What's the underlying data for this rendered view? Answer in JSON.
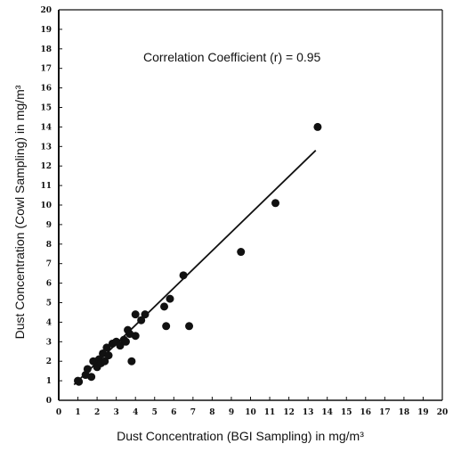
{
  "chart_data": {
    "type": "scatter",
    "title": "",
    "xlabel": "Dust Concentration (BGI Sampling) in mg/m³",
    "ylabel": "Dust Concentration (Cowl Sampling) in mg/m³",
    "annotation": "Correlation Coefficient (r) = 0.95",
    "xlim": [
      0,
      20
    ],
    "ylim": [
      0,
      20
    ],
    "x_ticks": [
      "0",
      "1",
      "2",
      "3",
      "4",
      "5",
      "6",
      "7",
      "8",
      "9",
      "10",
      "11",
      "12",
      "13",
      "14",
      "15",
      "16",
      "17",
      "18",
      "19",
      "20"
    ],
    "y_ticks": [
      "0",
      "1",
      "2",
      "3",
      "4",
      "5",
      "6",
      "7",
      "8",
      "9",
      "10",
      "11",
      "12",
      "13",
      "14",
      "15",
      "16",
      "17",
      "18",
      "19",
      "20"
    ],
    "grid": false,
    "series": [
      {
        "points": [
          [
            1.0,
            1.0
          ],
          [
            1.05,
            0.95
          ],
          [
            1.4,
            1.3
          ],
          [
            1.5,
            1.6
          ],
          [
            1.7,
            1.2
          ],
          [
            1.8,
            2.0
          ],
          [
            2.0,
            1.7
          ],
          [
            2.1,
            2.1
          ],
          [
            2.2,
            1.9
          ],
          [
            2.3,
            2.4
          ],
          [
            2.4,
            2.0
          ],
          [
            2.5,
            2.7
          ],
          [
            2.6,
            2.3
          ],
          [
            2.8,
            2.9
          ],
          [
            3.0,
            3.0
          ],
          [
            3.2,
            2.8
          ],
          [
            3.4,
            3.1
          ],
          [
            3.5,
            3.0
          ],
          [
            3.6,
            3.6
          ],
          [
            3.7,
            3.4
          ],
          [
            3.8,
            2.0
          ],
          [
            4.0,
            3.3
          ],
          [
            4.0,
            4.4
          ],
          [
            4.3,
            4.1
          ],
          [
            4.5,
            4.4
          ],
          [
            5.5,
            4.8
          ],
          [
            5.6,
            3.8
          ],
          [
            5.8,
            5.2
          ],
          [
            6.5,
            6.4
          ],
          [
            6.8,
            3.8
          ],
          [
            9.5,
            7.6
          ],
          [
            11.3,
            10.1
          ],
          [
            13.5,
            14.0
          ]
        ]
      }
    ],
    "fit_line": {
      "x": [
        0.8,
        13.4
      ],
      "y": [
        0.8,
        12.8
      ]
    }
  }
}
